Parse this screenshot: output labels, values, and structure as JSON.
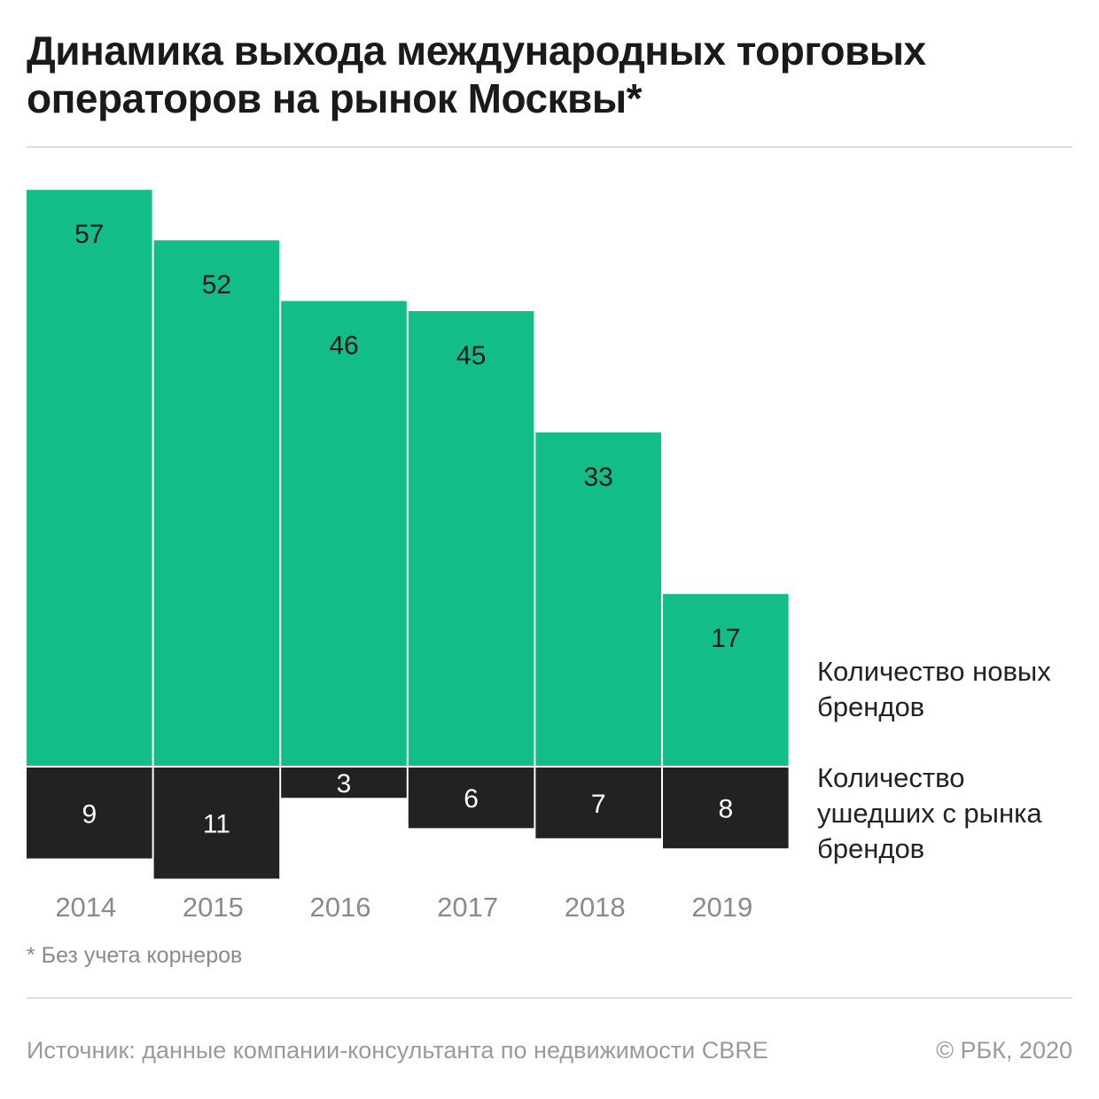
{
  "title": {
    "line1": "Динамика выхода международных торговых",
    "line2": "операторов на рынок Москвы*"
  },
  "colors": {
    "new_brands": "#13bd88",
    "left_brands": "#222222",
    "year_label": "#8a8a8a"
  },
  "legend": {
    "new_line1": "Количество новых",
    "new_line2": "брендов",
    "gone_line1": "Количество",
    "gone_line2": "ушедших с рынка",
    "gone_line3": "брендов"
  },
  "footnote": "* Без учета корнеров",
  "source": "Источник: данные компании-консультанта по недвижимости CBRE",
  "copyright": "© РБК, 2020",
  "chart_data": {
    "type": "bar",
    "categories": [
      "2014",
      "2015",
      "2016",
      "2017",
      "2018",
      "2019"
    ],
    "series": [
      {
        "name": "Количество новых брендов",
        "values": [
          57,
          52,
          46,
          45,
          33,
          17
        ],
        "direction": "up"
      },
      {
        "name": "Количество ушедших с рынка брендов",
        "values": [
          9,
          11,
          3,
          6,
          7,
          8
        ],
        "direction": "down"
      }
    ],
    "data_labels": true
  }
}
